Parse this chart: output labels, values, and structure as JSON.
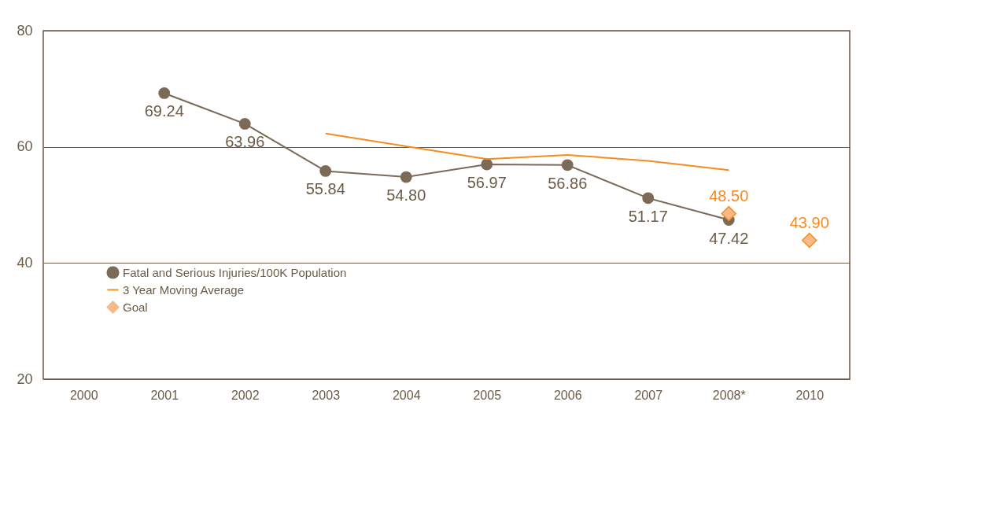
{
  "chart_data": {
    "type": "line",
    "categories": [
      "2000",
      "2001",
      "2002",
      "2003",
      "2004",
      "2005",
      "2006",
      "2007",
      "2008*",
      "2010"
    ],
    "series": [
      {
        "name": "Fatal and Serious Injuries/100K Population",
        "marker": "circle",
        "color": "#7b6a56",
        "values": [
          null,
          69.24,
          63.96,
          55.84,
          54.8,
          56.97,
          56.86,
          51.17,
          47.42,
          null
        ],
        "value_labels": [
          null,
          "69.24",
          "63.96",
          "55.84",
          "54.80",
          "56.97",
          "56.86",
          "51.17",
          "47.42",
          null
        ]
      },
      {
        "name": "3 Year Moving Average",
        "marker": "none",
        "color": "#f68b1f",
        "values": [
          null,
          null,
          null,
          62.3,
          60.1,
          57.9,
          58.6,
          57.6,
          56.0,
          null
        ]
      },
      {
        "name": "Goal",
        "type": "scatter",
        "marker": "diamond",
        "color": "#f9b987",
        "values": [
          null,
          null,
          null,
          null,
          null,
          null,
          null,
          null,
          48.5,
          43.9
        ],
        "value_labels": [
          null,
          null,
          null,
          null,
          null,
          null,
          null,
          null,
          "48.50",
          "43.90"
        ]
      }
    ],
    "ylim": [
      20,
      80
    ],
    "yticks": [
      20,
      40,
      60,
      80
    ],
    "grid": "y",
    "legend": "bottom left"
  }
}
